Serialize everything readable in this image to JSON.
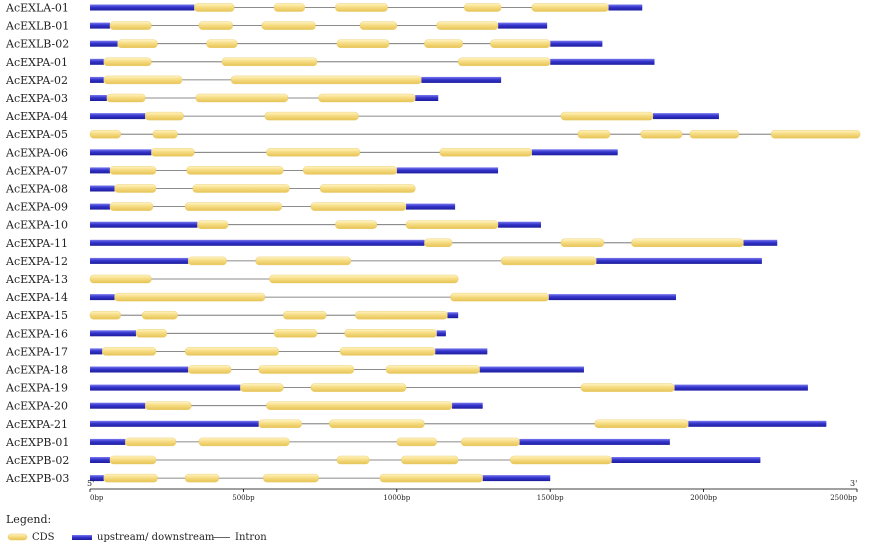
{
  "colors": {
    "cds_fill": "#f4d779",
    "cds_edge": "#e8c75a",
    "utr_fill": "#3b3bd0",
    "utr_edge": "#1f1fa8",
    "intron_line": "#666666"
  },
  "axis": {
    "max_bp": 2500,
    "ticks": [
      {
        "value": 0,
        "label": "0bp"
      },
      {
        "value": 500,
        "label": "500bp"
      },
      {
        "value": 1000,
        "label": "1000bp"
      },
      {
        "value": 1500,
        "label": "1500bp"
      },
      {
        "value": 2000,
        "label": "2000bp"
      },
      {
        "value": 2500,
        "label": "2500bp"
      }
    ],
    "five_prime": "5'",
    "three_prime": "3'"
  },
  "legend": {
    "title": "Legend:",
    "items": [
      {
        "key": "cds",
        "label": "CDS"
      },
      {
        "key": "utr",
        "label": "upstream/ downstream"
      },
      {
        "key": "intron",
        "label": "Intron"
      }
    ]
  },
  "genes": [
    {
      "name": "AcEXLA-01",
      "length": 1800,
      "utr": [
        [
          0,
          340
        ],
        [
          1690,
          1800
        ]
      ],
      "cds": [
        [
          340,
          470
        ],
        [
          600,
          700
        ],
        [
          800,
          970
        ],
        [
          1220,
          1340
        ],
        [
          1440,
          1690
        ]
      ]
    },
    {
      "name": "AcEXLB-01",
      "length": 1490,
      "utr": [
        [
          0,
          65
        ],
        [
          1330,
          1490
        ]
      ],
      "cds": [
        [
          65,
          200
        ],
        [
          355,
          465
        ],
        [
          560,
          735
        ],
        [
          880,
          1000
        ],
        [
          1130,
          1330
        ]
      ]
    },
    {
      "name": "AcEXLB-02",
      "length": 1670,
      "utr": [
        [
          0,
          90
        ],
        [
          1500,
          1670
        ]
      ],
      "cds": [
        [
          90,
          220
        ],
        [
          380,
          480
        ],
        [
          805,
          975
        ],
        [
          1090,
          1215
        ],
        [
          1305,
          1500
        ]
      ]
    },
    {
      "name": "AcEXPA-01",
      "length": 1840,
      "utr": [
        [
          0,
          45
        ],
        [
          1500,
          1840
        ]
      ],
      "cds": [
        [
          45,
          200
        ],
        [
          430,
          740
        ],
        [
          1200,
          1500
        ]
      ]
    },
    {
      "name": "AcEXPA-02",
      "length": 1340,
      "utr": [
        [
          0,
          45
        ],
        [
          1080,
          1340
        ]
      ],
      "cds": [
        [
          45,
          300
        ],
        [
          460,
          1080
        ]
      ]
    },
    {
      "name": "AcEXPA-03",
      "length": 1135,
      "utr": [
        [
          0,
          55
        ],
        [
          1060,
          1135
        ]
      ],
      "cds": [
        [
          55,
          180
        ],
        [
          345,
          645
        ],
        [
          745,
          1060
        ]
      ]
    },
    {
      "name": "AcEXPA-04",
      "length": 2050,
      "utr": [
        [
          0,
          180
        ],
        [
          1835,
          2050
        ]
      ],
      "cds": [
        [
          180,
          305
        ],
        [
          570,
          875
        ],
        [
          1535,
          1835
        ]
      ]
    },
    {
      "name": "AcEXPA-05",
      "length": 2510,
      "utr": [],
      "cds": [
        [
          0,
          100
        ],
        [
          205,
          285
        ],
        [
          1590,
          1695
        ],
        [
          1795,
          1930
        ],
        [
          1955,
          2115
        ],
        [
          2220,
          2510
        ]
      ]
    },
    {
      "name": "AcEXPA-06",
      "length": 1720,
      "utr": [
        [
          0,
          200
        ],
        [
          1440,
          1720
        ]
      ],
      "cds": [
        [
          200,
          340
        ],
        [
          575,
          880
        ],
        [
          1140,
          1440
        ]
      ]
    },
    {
      "name": "AcEXPA-07",
      "length": 1330,
      "utr": [
        [
          0,
          65
        ],
        [
          1000,
          1330
        ]
      ],
      "cds": [
        [
          65,
          215
        ],
        [
          315,
          630
        ],
        [
          695,
          1000
        ]
      ]
    },
    {
      "name": "AcEXPA-08",
      "length": 1060,
      "utr": [
        [
          0,
          80
        ]
      ],
      "cds": [
        [
          80,
          215
        ],
        [
          335,
          650
        ],
        [
          750,
          1060
        ]
      ]
    },
    {
      "name": "AcEXPA-09",
      "length": 1190,
      "utr": [
        [
          0,
          65
        ],
        [
          1030,
          1190
        ]
      ],
      "cds": [
        [
          65,
          205
        ],
        [
          310,
          625
        ],
        [
          720,
          1030
        ]
      ]
    },
    {
      "name": "AcEXPA-10",
      "length": 1470,
      "utr": [
        [
          0,
          350
        ],
        [
          1330,
          1470
        ]
      ],
      "cds": [
        [
          350,
          450
        ],
        [
          800,
          935
        ],
        [
          1030,
          1330
        ]
      ]
    },
    {
      "name": "AcEXPA-11",
      "length": 2240,
      "utr": [
        [
          0,
          1090
        ],
        [
          2130,
          2240
        ]
      ],
      "cds": [
        [
          1090,
          1180
        ],
        [
          1535,
          1675
        ],
        [
          1765,
          2130
        ]
      ]
    },
    {
      "name": "AcEXPA-12",
      "length": 2190,
      "utr": [
        [
          0,
          320
        ],
        [
          1650,
          2190
        ]
      ],
      "cds": [
        [
          320,
          445
        ],
        [
          540,
          850
        ],
        [
          1340,
          1650
        ]
      ]
    },
    {
      "name": "AcEXPA-13",
      "length": 1200,
      "utr": [],
      "cds": [
        [
          0,
          200
        ],
        [
          585,
          1200
        ]
      ]
    },
    {
      "name": "AcEXPA-14",
      "length": 1910,
      "utr": [
        [
          0,
          80
        ],
        [
          1495,
          1910
        ]
      ],
      "cds": [
        [
          80,
          570
        ],
        [
          1175,
          1495
        ]
      ]
    },
    {
      "name": "AcEXPA-15",
      "length": 1200,
      "utr": [
        [
          1165,
          1200
        ]
      ],
      "cds": [
        [
          0,
          100
        ],
        [
          170,
          285
        ],
        [
          630,
          770
        ],
        [
          865,
          1165
        ]
      ]
    },
    {
      "name": "AcEXPA-16",
      "length": 1160,
      "utr": [
        [
          0,
          150
        ],
        [
          1130,
          1160
        ]
      ],
      "cds": [
        [
          150,
          250
        ],
        [
          600,
          740
        ],
        [
          830,
          1130
        ]
      ]
    },
    {
      "name": "AcEXPA-17",
      "length": 1295,
      "utr": [
        [
          0,
          40
        ],
        [
          1125,
          1295
        ]
      ],
      "cds": [
        [
          40,
          215
        ],
        [
          310,
          615
        ],
        [
          815,
          1125
        ]
      ]
    },
    {
      "name": "AcEXPA-18",
      "length": 1610,
      "utr": [
        [
          0,
          320
        ],
        [
          1270,
          1610
        ]
      ],
      "cds": [
        [
          320,
          460
        ],
        [
          550,
          860
        ],
        [
          965,
          1270
        ]
      ]
    },
    {
      "name": "AcEXPA-19",
      "length": 2340,
      "utr": [
        [
          0,
          490
        ],
        [
          1905,
          2340
        ]
      ],
      "cds": [
        [
          490,
          630
        ],
        [
          720,
          1030
        ],
        [
          1600,
          1905
        ]
      ]
    },
    {
      "name": "AcEXPA-20",
      "length": 1280,
      "utr": [
        [
          0,
          180
        ],
        [
          1180,
          1280
        ]
      ],
      "cds": [
        [
          180,
          330
        ],
        [
          575,
          1180
        ]
      ]
    },
    {
      "name": "AcEXPA-21",
      "length": 2400,
      "utr": [
        [
          0,
          550
        ],
        [
          1950,
          2400
        ]
      ],
      "cds": [
        [
          550,
          690
        ],
        [
          780,
          1090
        ],
        [
          1645,
          1950
        ]
      ]
    },
    {
      "name": "AcEXPB-01",
      "length": 1890,
      "utr": [
        [
          0,
          115
        ],
        [
          1400,
          1890
        ]
      ],
      "cds": [
        [
          115,
          280
        ],
        [
          355,
          650
        ],
        [
          1000,
          1130
        ],
        [
          1210,
          1400
        ]
      ]
    },
    {
      "name": "AcEXPB-02",
      "length": 2185,
      "utr": [
        [
          0,
          65
        ],
        [
          1700,
          2185
        ]
      ],
      "cds": [
        [
          65,
          215
        ],
        [
          805,
          910
        ],
        [
          1015,
          1200
        ],
        [
          1370,
          1700
        ]
      ]
    },
    {
      "name": "AcEXPB-03",
      "length": 1500,
      "utr": [
        [
          0,
          45
        ],
        [
          1280,
          1500
        ]
      ],
      "cds": [
        [
          45,
          220
        ],
        [
          310,
          420
        ],
        [
          565,
          745
        ],
        [
          945,
          1280
        ]
      ]
    }
  ]
}
